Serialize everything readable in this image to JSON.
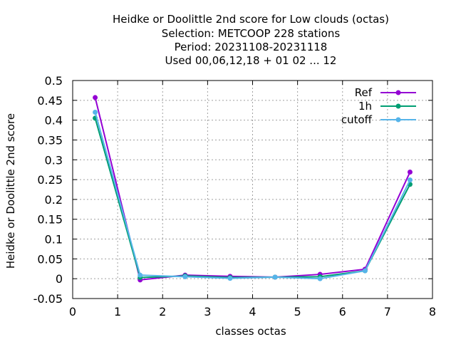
{
  "chart_data": {
    "type": "line",
    "title_lines": [
      "Heidke or Doolittle 2nd score  for Low clouds (octas)",
      "Selection: METCOOP    228 stations",
      "Period: 20231108-20231118",
      "Used  00,06,12,18 + 01 02 ... 12"
    ],
    "xlabel": "classes octas",
    "ylabel": "Heidke or Doolittle 2nd score",
    "xlim": [
      0,
      8
    ],
    "ylim": [
      -0.05,
      0.5
    ],
    "xticks": [
      0,
      1,
      2,
      3,
      4,
      5,
      6,
      7,
      8
    ],
    "yticks": [
      -0.05,
      0,
      0.05,
      0.1,
      0.15,
      0.2,
      0.25,
      0.3,
      0.35,
      0.4,
      0.45,
      0.5
    ],
    "ytick_labels": [
      "-0.05",
      "0",
      "0.05",
      "0.1",
      "0.15",
      "0.2",
      "0.25",
      "0.3",
      "0.35",
      "0.4",
      "0.45",
      "0.5"
    ],
    "grid": true,
    "legend_position": "top-right",
    "x": [
      0.5,
      1.5,
      2.5,
      3.5,
      4.5,
      5.5,
      6.5,
      7.5
    ],
    "series": [
      {
        "name": "Ref",
        "color": "#9400d3",
        "values": [
          0.457,
          -0.003,
          0.009,
          0.006,
          0.004,
          0.011,
          0.024,
          0.269
        ]
      },
      {
        "name": "1h",
        "color": "#009e73",
        "values": [
          0.405,
          0.003,
          0.007,
          0.003,
          0.004,
          0.005,
          0.02,
          0.238
        ]
      },
      {
        "name": "cutoff",
        "color": "#56b4e9",
        "values": [
          0.42,
          0.009,
          0.005,
          0.001,
          0.004,
          0.0,
          0.02,
          0.249
        ]
      }
    ]
  }
}
